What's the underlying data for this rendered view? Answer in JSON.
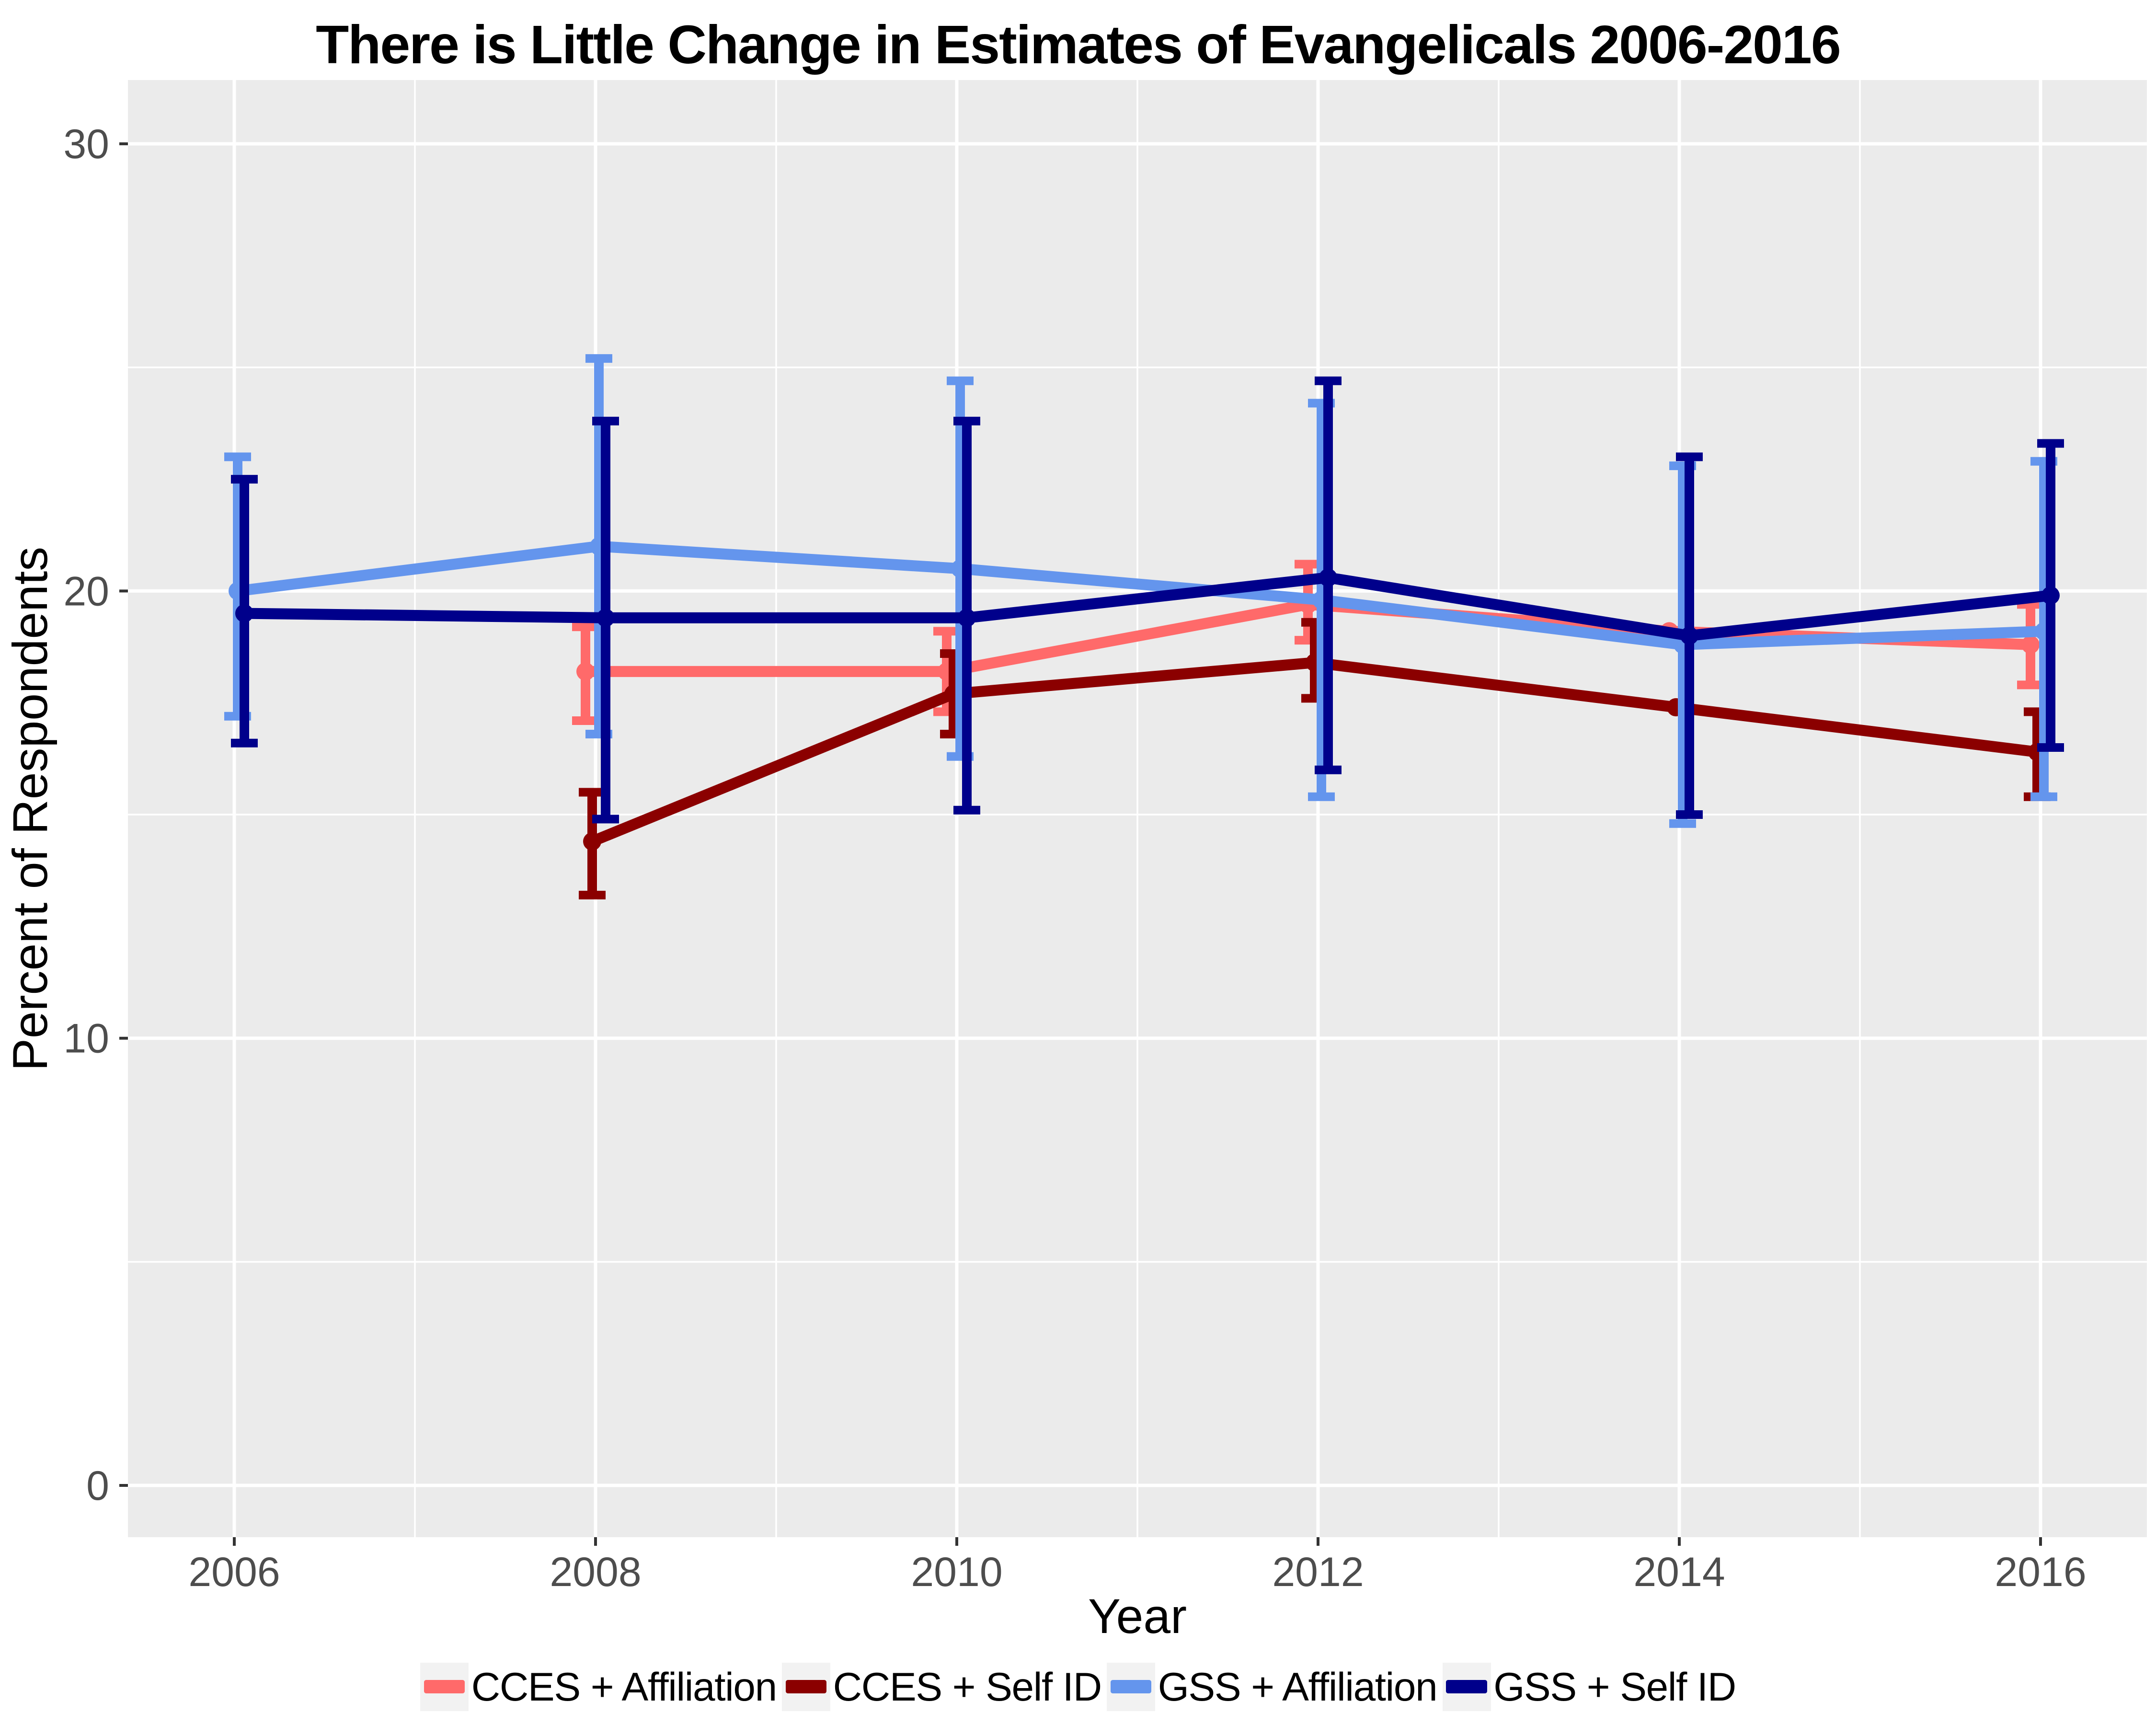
{
  "title": "There is Little Change in Estimates of Evangelicals 2006-2016",
  "axes": {
    "x_title": "Year",
    "y_title": "Percent of Respondents",
    "x_ticks": [
      "2006",
      "2008",
      "2010",
      "2012",
      "2014",
      "2016"
    ],
    "y_ticks": [
      "0",
      "10",
      "20",
      "30"
    ]
  },
  "legend": {
    "items": [
      {
        "label": "CCES + Affiliation",
        "color": "#FF6A6A"
      },
      {
        "label": "CCES + Self ID",
        "color": "#8B0000"
      },
      {
        "label": "GSS + Affiliation",
        "color": "#6495ED"
      },
      {
        "label": "GSS + Self ID",
        "color": "#00008B"
      }
    ]
  },
  "colors": {
    "page_background": "#FFFFFF",
    "panel_background": "#EBEBEB",
    "gridline": "#FFFFFF",
    "tick_label_text": "#4D4D4D",
    "title_text": "#000000",
    "legend_key_background": "#F2F2F2"
  },
  "chart_data": {
    "type": "line",
    "title": "There is Little Change in Estimates of Evangelicals 2006-2016",
    "xlabel": "Year",
    "ylabel": "Percent of Respondents",
    "x": [
      2006,
      2008,
      2010,
      2012,
      2014,
      2016
    ],
    "ylim": [
      -1.2,
      31.5
    ],
    "xlim": [
      2005.4,
      2016.6
    ],
    "grid": "on",
    "legend_position": "bottom",
    "error_bars": true,
    "series": [
      {
        "name": "CCES + Affiliation",
        "color": "#FF6A6A",
        "points": [
          {
            "x": 2008,
            "y": 18.2,
            "lo": 17.1,
            "hi": 19.2
          },
          {
            "x": 2010,
            "y": 18.2,
            "lo": 17.3,
            "hi": 19.1
          },
          {
            "x": 2012,
            "y": 19.7,
            "lo": 18.9,
            "hi": 20.6
          },
          {
            "x": 2014,
            "y": 19.1,
            "lo": null,
            "hi": null
          },
          {
            "x": 2016,
            "y": 18.8,
            "lo": 17.9,
            "hi": 19.7
          }
        ]
      },
      {
        "name": "CCES + Self ID",
        "color": "#8B0000",
        "points": [
          {
            "x": 2008,
            "y": 14.4,
            "lo": 13.2,
            "hi": 15.5
          },
          {
            "x": 2010,
            "y": 17.7,
            "lo": 16.8,
            "hi": 18.6
          },
          {
            "x": 2012,
            "y": 18.4,
            "lo": 17.6,
            "hi": 19.3
          },
          {
            "x": 2014,
            "y": 17.4,
            "lo": null,
            "hi": null
          },
          {
            "x": 2016,
            "y": 16.4,
            "lo": 15.4,
            "hi": 17.3
          }
        ]
      },
      {
        "name": "GSS + Affiliation",
        "color": "#6495ED",
        "points": [
          {
            "x": 2006,
            "y": 20.0,
            "lo": 17.2,
            "hi": 23.0
          },
          {
            "x": 2008,
            "y": 21.0,
            "lo": 16.8,
            "hi": 25.2
          },
          {
            "x": 2010,
            "y": 20.5,
            "lo": 16.3,
            "hi": 24.7
          },
          {
            "x": 2012,
            "y": 19.8,
            "lo": 15.4,
            "hi": 24.2
          },
          {
            "x": 2014,
            "y": 18.8,
            "lo": 14.8,
            "hi": 22.8
          },
          {
            "x": 2016,
            "y": 19.1,
            "lo": 15.4,
            "hi": 22.9
          }
        ]
      },
      {
        "name": "GSS + Self ID",
        "color": "#00008B",
        "points": [
          {
            "x": 2006,
            "y": 19.5,
            "lo": 16.6,
            "hi": 22.5
          },
          {
            "x": 2008,
            "y": 19.4,
            "lo": 14.9,
            "hi": 23.8
          },
          {
            "x": 2010,
            "y": 19.4,
            "lo": 15.1,
            "hi": 23.8
          },
          {
            "x": 2012,
            "y": 20.3,
            "lo": 16.0,
            "hi": 24.7
          },
          {
            "x": 2014,
            "y": 19.0,
            "lo": 15.0,
            "hi": 23.0
          },
          {
            "x": 2016,
            "y": 19.9,
            "lo": 16.5,
            "hi": 23.3
          }
        ]
      }
    ]
  }
}
